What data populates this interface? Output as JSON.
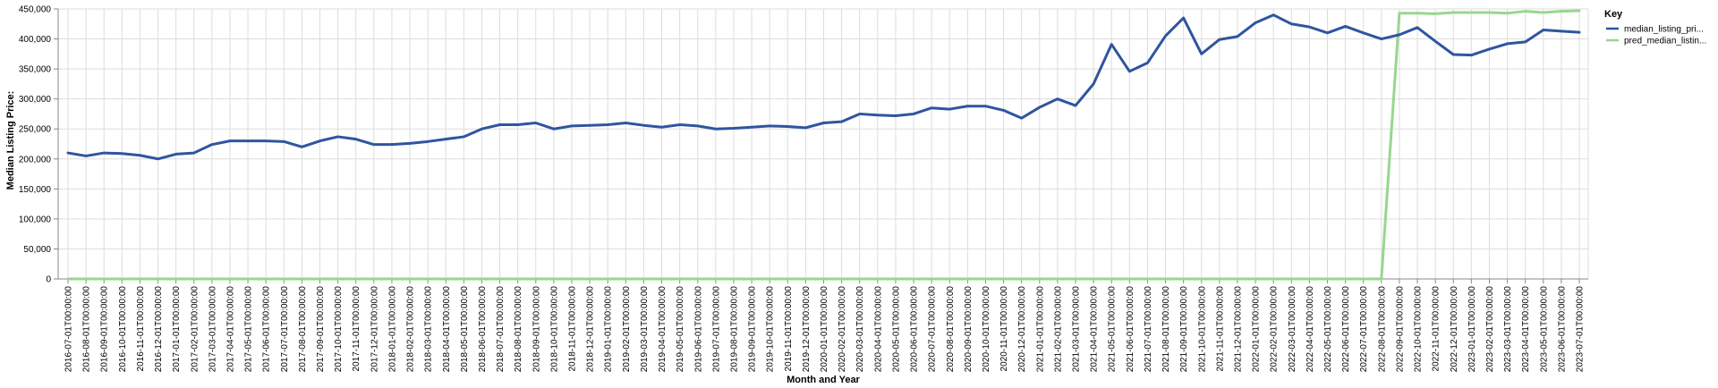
{
  "chart_data": {
    "type": "line",
    "xlabel": "Month and Year",
    "ylabel": "Median Listing Price:",
    "ylim": [
      0,
      450000
    ],
    "yticks": [
      "0",
      "50,000",
      "100,000",
      "150,000",
      "200,000",
      "250,000",
      "300,000",
      "350,000",
      "400,000",
      "450,000"
    ],
    "grid": true,
    "legend": {
      "title": "Key",
      "placement": "right"
    },
    "x": [
      "2016-07-01T00:00:00",
      "2016-08-01T00:00:00",
      "2016-09-01T00:00:00",
      "2016-10-01T00:00:00",
      "2016-11-01T00:00:00",
      "2016-12-01T00:00:00",
      "2017-01-01T00:00:00",
      "2017-02-01T00:00:00",
      "2017-03-01T00:00:00",
      "2017-04-01T00:00:00",
      "2017-05-01T00:00:00",
      "2017-06-01T00:00:00",
      "2017-07-01T00:00:00",
      "2017-08-01T00:00:00",
      "2017-09-01T00:00:00",
      "2017-10-01T00:00:00",
      "2017-11-01T00:00:00",
      "2017-12-01T00:00:00",
      "2018-01-01T00:00:00",
      "2018-02-01T00:00:00",
      "2018-03-01T00:00:00",
      "2018-04-01T00:00:00",
      "2018-05-01T00:00:00",
      "2018-06-01T00:00:00",
      "2018-07-01T00:00:00",
      "2018-08-01T00:00:00",
      "2018-09-01T00:00:00",
      "2018-10-01T00:00:00",
      "2018-11-01T00:00:00",
      "2018-12-01T00:00:00",
      "2019-01-01T00:00:00",
      "2019-02-01T00:00:00",
      "2019-03-01T00:00:00",
      "2019-04-01T00:00:00",
      "2019-05-01T00:00:00",
      "2019-06-01T00:00:00",
      "2019-07-01T00:00:00",
      "2019-08-01T00:00:00",
      "2019-09-01T00:00:00",
      "2019-10-01T00:00:00",
      "2019-11-01T00:00:00",
      "2019-12-01T00:00:00",
      "2020-01-01T00:00:00",
      "2020-02-01T00:00:00",
      "2020-03-01T00:00:00",
      "2020-04-01T00:00:00",
      "2020-05-01T00:00:00",
      "2020-06-01T00:00:00",
      "2020-07-01T00:00:00",
      "2020-08-01T00:00:00",
      "2020-09-01T00:00:00",
      "2020-10-01T00:00:00",
      "2020-11-01T00:00:00",
      "2020-12-01T00:00:00",
      "2021-01-01T00:00:00",
      "2021-02-01T00:00:00",
      "2021-03-01T00:00:00",
      "2021-04-01T00:00:00",
      "2021-05-01T00:00:00",
      "2021-06-01T00:00:00",
      "2021-07-01T00:00:00",
      "2021-08-01T00:00:00",
      "2021-09-01T00:00:00",
      "2021-10-01T00:00:00",
      "2021-11-01T00:00:00",
      "2021-12-01T00:00:00",
      "2022-01-01T00:00:00",
      "2022-02-01T00:00:00",
      "2022-03-01T00:00:00",
      "2022-04-01T00:00:00",
      "2022-05-01T00:00:00",
      "2022-06-01T00:00:00",
      "2022-07-01T00:00:00",
      "2022-08-01T00:00:00",
      "2022-09-01T00:00:00",
      "2022-10-01T00:00:00",
      "2022-11-01T00:00:00",
      "2022-12-01T00:00:00",
      "2023-01-01T00:00:00",
      "2023-02-01T00:00:00",
      "2023-03-01T00:00:00",
      "2023-04-01T00:00:00",
      "2023-05-01T00:00:00",
      "2023-06-01T00:00:00",
      "2023-07-01T00:00:00"
    ],
    "series": [
      {
        "name": "median_listing_pri...",
        "color": "#2f55a0",
        "values": [
          210000,
          205000,
          210000,
          209000,
          206000,
          200000,
          208000,
          210000,
          224000,
          230000,
          230000,
          230000,
          229000,
          220000,
          230000,
          237000,
          233000,
          224000,
          224000,
          226000,
          229000,
          233000,
          237000,
          250000,
          257000,
          257000,
          260000,
          250000,
          255000,
          256000,
          257000,
          260000,
          256000,
          253000,
          257000,
          255000,
          250000,
          251000,
          253000,
          255000,
          254000,
          252000,
          260000,
          262000,
          275000,
          273000,
          272000,
          275000,
          285000,
          283000,
          288000,
          288000,
          281000,
          268000,
          286000,
          300000,
          289000,
          325000,
          391000,
          346000,
          360000,
          405000,
          435000,
          375000,
          399000,
          404000,
          427000,
          440000,
          425000,
          420000,
          410000,
          421000,
          410000,
          400000,
          407000,
          419000,
          396000,
          374000,
          373000,
          383000,
          392000,
          395000,
          415000,
          413000,
          411000
        ]
      },
      {
        "name": "pred_median_listin...",
        "color": "#98d68f",
        "values": [
          0,
          0,
          0,
          0,
          0,
          0,
          0,
          0,
          0,
          0,
          0,
          0,
          0,
          0,
          0,
          0,
          0,
          0,
          0,
          0,
          0,
          0,
          0,
          0,
          0,
          0,
          0,
          0,
          0,
          0,
          0,
          0,
          0,
          0,
          0,
          0,
          0,
          0,
          0,
          0,
          0,
          0,
          0,
          0,
          0,
          0,
          0,
          0,
          0,
          0,
          0,
          0,
          0,
          0,
          0,
          0,
          0,
          0,
          0,
          0,
          0,
          0,
          0,
          0,
          0,
          0,
          0,
          0,
          0,
          0,
          0,
          0,
          0,
          0,
          443000,
          443000,
          442000,
          444000,
          444000,
          444000,
          443000,
          446000,
          444000,
          446000,
          447000
        ]
      }
    ]
  }
}
